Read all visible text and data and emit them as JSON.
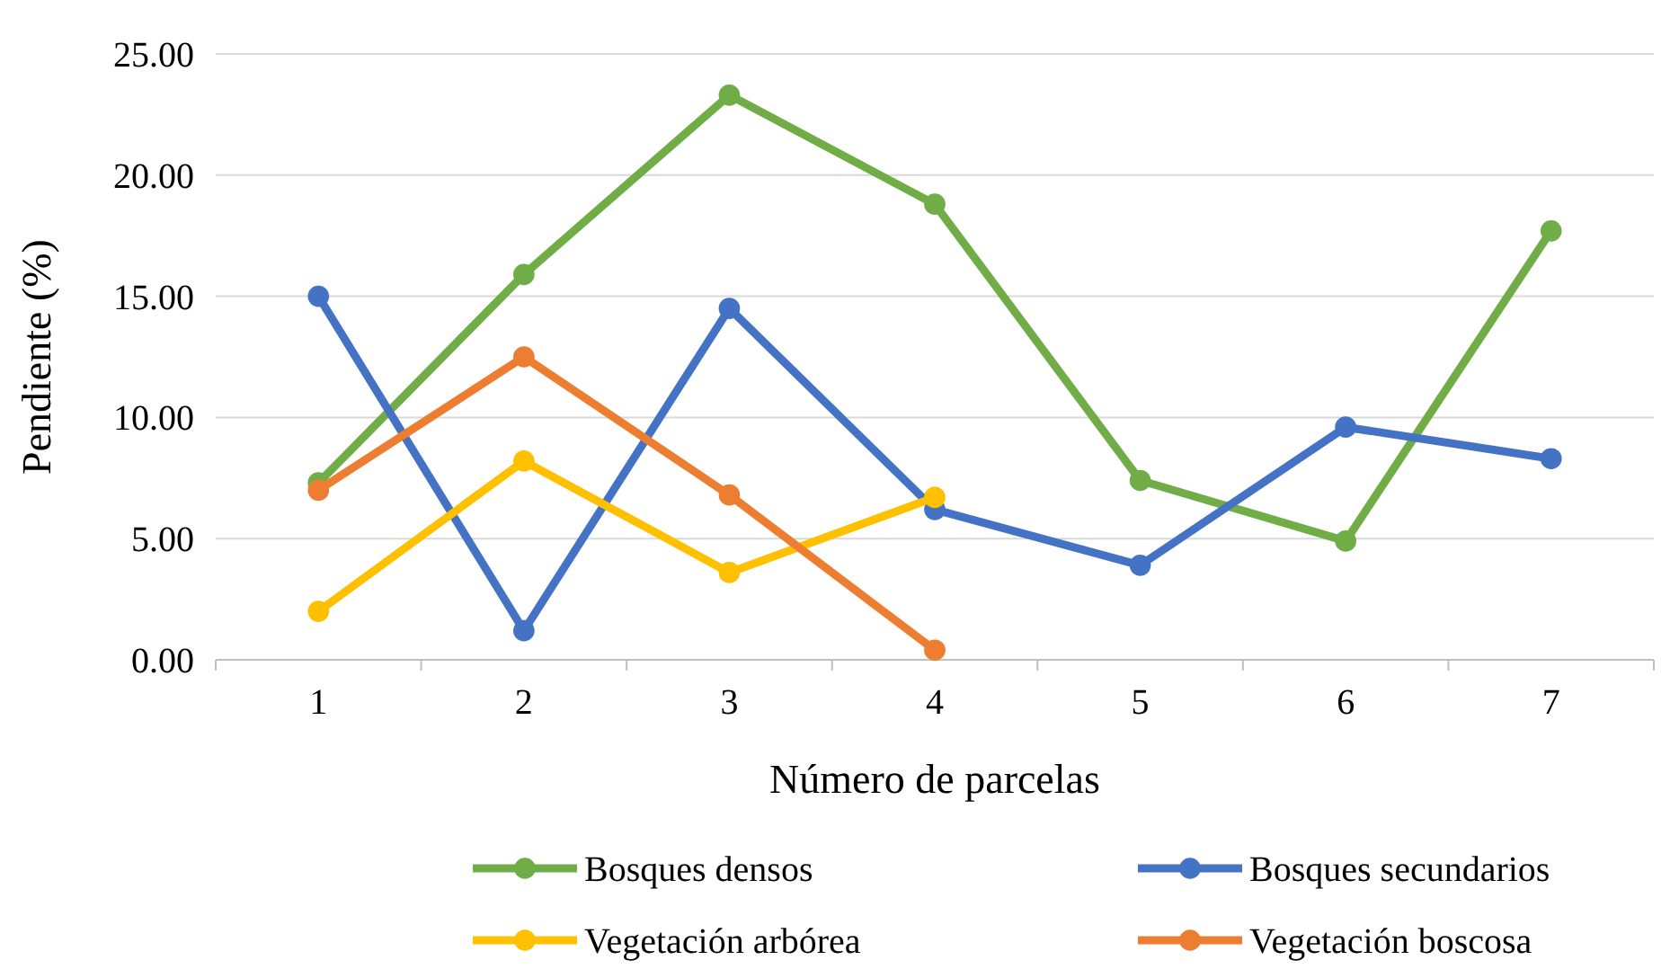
{
  "chart_data": {
    "type": "line",
    "xlabel": "Número de parcelas",
    "ylabel": "Pendiente (%)",
    "categories": [
      "1",
      "2",
      "3",
      "4",
      "5",
      "6",
      "7"
    ],
    "series": [
      {
        "name": "Bosques densos",
        "color": "#70ad47",
        "values": [
          7.3,
          15.9,
          23.3,
          18.8,
          7.4,
          4.9,
          17.7
        ]
      },
      {
        "name": "Bosques secundarios",
        "color": "#4472c4",
        "values": [
          15.0,
          1.2,
          14.5,
          6.2,
          3.9,
          9.6,
          8.3
        ]
      },
      {
        "name": "Vegetación arbórea",
        "color": "#ffc000",
        "values": [
          2.0,
          8.2,
          3.6,
          6.7,
          null,
          null,
          null
        ]
      },
      {
        "name": "Vegetación boscosa",
        "color": "#ed7d31",
        "values": [
          7.0,
          12.5,
          6.8,
          0.4,
          null,
          null,
          null
        ]
      }
    ],
    "ylim": [
      0,
      25
    ],
    "yticks": [
      {
        "value": 0,
        "label": "0.00"
      },
      {
        "value": 5,
        "label": "5.00"
      },
      {
        "value": 10,
        "label": "10.00"
      },
      {
        "value": 15,
        "label": "15.00"
      },
      {
        "value": 20,
        "label": "20.00"
      },
      {
        "value": 25,
        "label": "25.00"
      }
    ],
    "grid": "y",
    "legend": "bottom",
    "marker": "circle",
    "line_style": "solid"
  }
}
